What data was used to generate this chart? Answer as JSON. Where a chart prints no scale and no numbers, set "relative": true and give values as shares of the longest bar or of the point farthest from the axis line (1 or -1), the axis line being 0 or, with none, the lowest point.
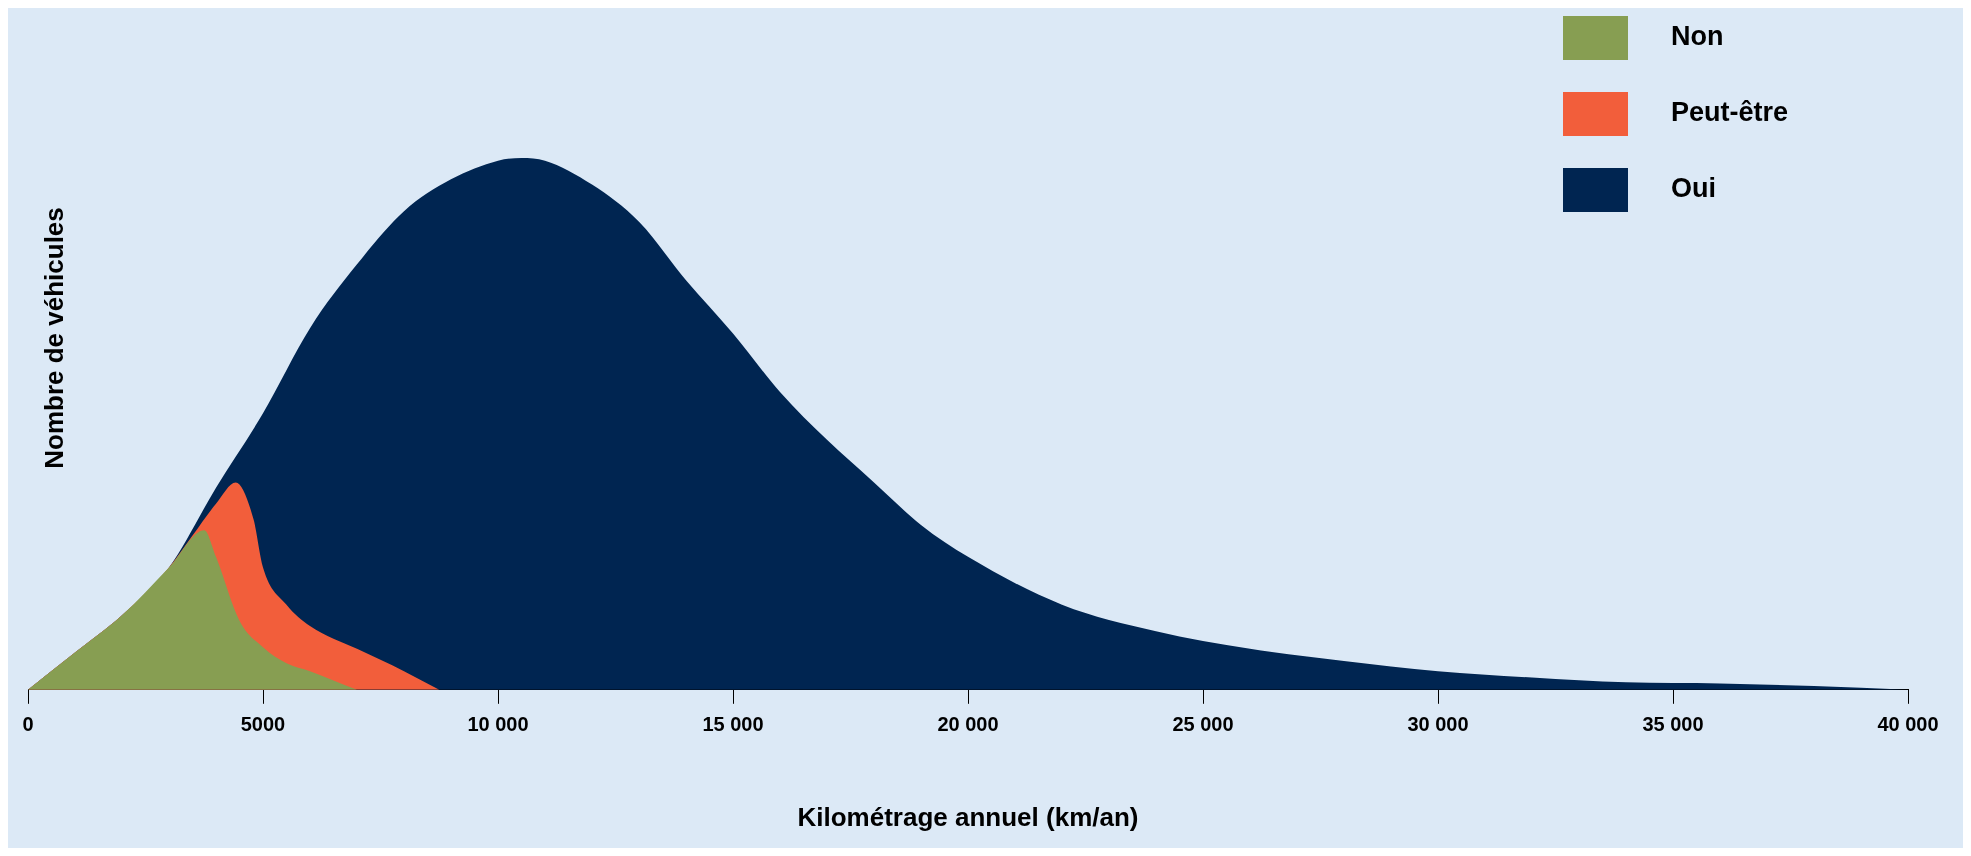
{
  "chart_data": {
    "type": "area",
    "relative": true,
    "xlabel": "Kilométrage annuel (km/an)",
    "ylabel": "Nombre de véhicules",
    "legend": "top right",
    "xlim": [
      0,
      40000
    ],
    "xticks": [
      0,
      5000,
      {
        "value": 10000,
        "label": "10 000"
      },
      {
        "value": 15000,
        "label": "15 000"
      },
      {
        "value": 20000,
        "label": "20 000"
      },
      {
        "value": 25000,
        "label": "25 000"
      },
      {
        "value": 30000,
        "label": "30 000"
      },
      {
        "value": 35000,
        "label": "35 000"
      },
      {
        "value": 40000,
        "label": "40 000"
      }
    ],
    "series": [
      {
        "name": "Non",
        "color": "#879e52",
        "x": [
          0,
          1000,
          2000,
          3000,
          3750,
          4000,
          4500,
          5000,
          5500,
          6000,
          7000
        ],
        "values": [
          0,
          0.07,
          0.14,
          0.23,
          0.3,
          0.25,
          0.13,
          0.08,
          0.05,
          0.035,
          0
        ]
      },
      {
        "name": "Peut-être",
        "color": "#f25e3b",
        "x": [
          0,
          1000,
          2000,
          3000,
          3500,
          4000,
          4420,
          4800,
          5000,
          5500,
          6000,
          7000,
          8000,
          8750
        ],
        "values": [
          0,
          0.07,
          0.14,
          0.23,
          0.29,
          0.35,
          0.39,
          0.32,
          0.23,
          0.16,
          0.12,
          0.077,
          0.035,
          0
        ]
      },
      {
        "name": "Oui",
        "color": "#002551",
        "x": [
          0,
          1000,
          2000,
          3000,
          4000,
          5000,
          6000,
          7000,
          8000,
          9000,
          10000,
          10500,
          11000,
          12000,
          13000,
          14000,
          15000,
          16000,
          17000,
          18000,
          19000,
          20000,
          22000,
          24000,
          26000,
          28000,
          30000,
          32000,
          34000,
          36000,
          38000,
          40000
        ],
        "values": [
          0,
          0.07,
          0.14,
          0.23,
          0.38,
          0.52,
          0.68,
          0.8,
          0.9,
          0.96,
          0.995,
          1,
          0.995,
          0.95,
          0.88,
          0.77,
          0.67,
          0.56,
          0.47,
          0.39,
          0.31,
          0.25,
          0.16,
          0.11,
          0.077,
          0.054,
          0.035,
          0.023,
          0.014,
          0.012,
          0.007,
          0
        ]
      }
    ]
  }
}
